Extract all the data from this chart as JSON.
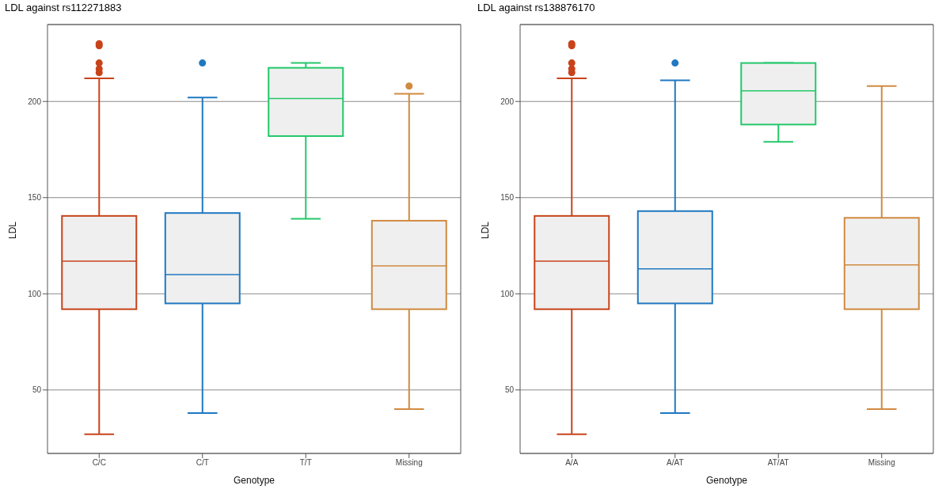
{
  "chart_data": [
    {
      "type": "box",
      "title": "LDL against rs112271883",
      "xlabel": "Genotype",
      "ylabel": "LDL",
      "categories": [
        "C/C",
        "C/T",
        "T/T",
        "Missing"
      ],
      "colors": [
        "#c8431a",
        "#1f78c1",
        "#23c86a",
        "#d08a40"
      ],
      "boxes": [
        {
          "low": 27,
          "q1": 92,
          "median": 117,
          "q3": 140.5,
          "high": 212,
          "outliers": [
            215,
            217,
            220,
            229,
            230
          ]
        },
        {
          "low": 38,
          "q1": 95,
          "median": 110,
          "q3": 142,
          "high": 202,
          "outliers": [
            220
          ]
        },
        {
          "low": 139,
          "q1": 182,
          "median": 201.5,
          "q3": 217.5,
          "high": 220
        },
        {
          "low": 40,
          "q1": 92,
          "median": 114.5,
          "q3": 138,
          "high": 204,
          "outliers": [
            208
          ]
        }
      ],
      "ylim": [
        17,
        240
      ],
      "yticks": [
        50,
        100,
        150,
        200
      ],
      "grid": "y"
    },
    {
      "type": "box",
      "title": "LDL against rs138876170",
      "xlabel": "Genotype",
      "ylabel": "LDL",
      "categories": [
        "A/A",
        "A/AT",
        "AT/AT",
        "Missing"
      ],
      "colors": [
        "#c8431a",
        "#1f78c1",
        "#23c86a",
        "#d08a40"
      ],
      "boxes": [
        {
          "low": 27,
          "q1": 92,
          "median": 117,
          "q3": 140.5,
          "high": 212,
          "outliers": [
            215,
            217,
            220,
            229,
            230
          ]
        },
        {
          "low": 38,
          "q1": 95,
          "median": 113,
          "q3": 143,
          "high": 211,
          "outliers": [
            220
          ]
        },
        {
          "low": 179,
          "q1": 188,
          "median": 205.5,
          "q3": 220,
          "high": 220
        },
        {
          "low": 40,
          "q1": 92,
          "median": 115,
          "q3": 139.5,
          "high": 208
        }
      ],
      "ylim": [
        17,
        240
      ],
      "yticks": [
        50,
        100,
        150,
        200
      ],
      "grid": "y"
    }
  ]
}
